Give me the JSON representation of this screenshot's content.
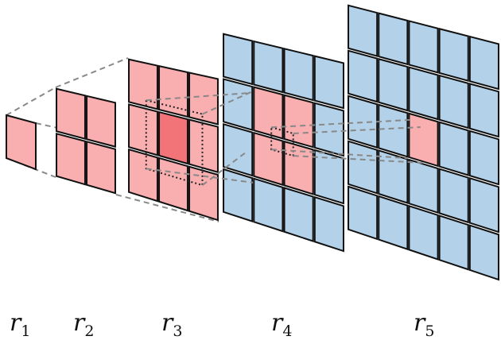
{
  "colors": {
    "receptive": "#f9aeb0",
    "receptive_center": "#f27378",
    "feature": "#b3d2ea",
    "outline": "#111111",
    "guide": "#8a8a8a"
  },
  "layers": [
    {
      "id": "r1",
      "name": "r",
      "subscript": "1",
      "grid": 1
    },
    {
      "id": "r2",
      "name": "r",
      "subscript": "2",
      "grid": 2
    },
    {
      "id": "r3",
      "name": "r",
      "subscript": "3",
      "grid": 3
    },
    {
      "id": "r4",
      "name": "r",
      "subscript": "4",
      "grid": 4
    },
    {
      "id": "r5",
      "name": "r",
      "subscript": "5",
      "grid": 5
    }
  ]
}
